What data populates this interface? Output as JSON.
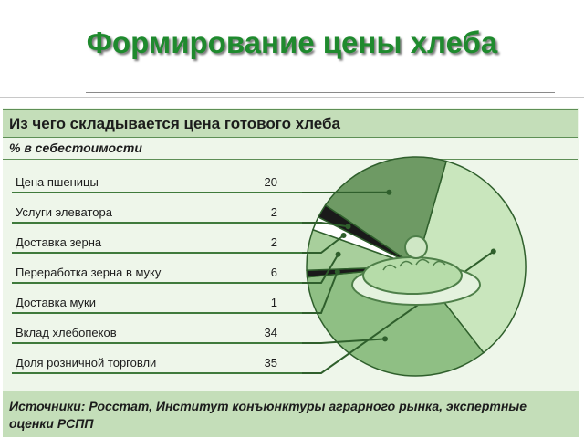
{
  "slide": {
    "title": "Формирование цены хлеба"
  },
  "chart_data": {
    "type": "pie",
    "title": "Из чего складывается цена готового хлеба",
    "subtitle": "% в себестоимости",
    "categories": [
      "Цена пшеницы",
      "Услуги элеватора",
      "Доставка зерна",
      "Переработка зерна в муку",
      "Доставка муки",
      "Вклад хлебопеков",
      "Доля розничной торговли"
    ],
    "values": [
      20,
      2,
      2,
      6,
      1,
      34,
      35
    ],
    "value_labels": [
      "20",
      "2",
      "2",
      "6",
      "1",
      "34",
      "35"
    ],
    "colors": [
      "#6e9a64",
      "#1a1a1a",
      "#ffffff",
      "#a8cf9c",
      "#1a1a1a",
      "#8fbf84",
      "#c9e6bd"
    ],
    "legend_placement": "left",
    "source": "Источники: Росстат, Институт конъюнктуры аграрного рынка, экспертные оценки РСПП"
  }
}
